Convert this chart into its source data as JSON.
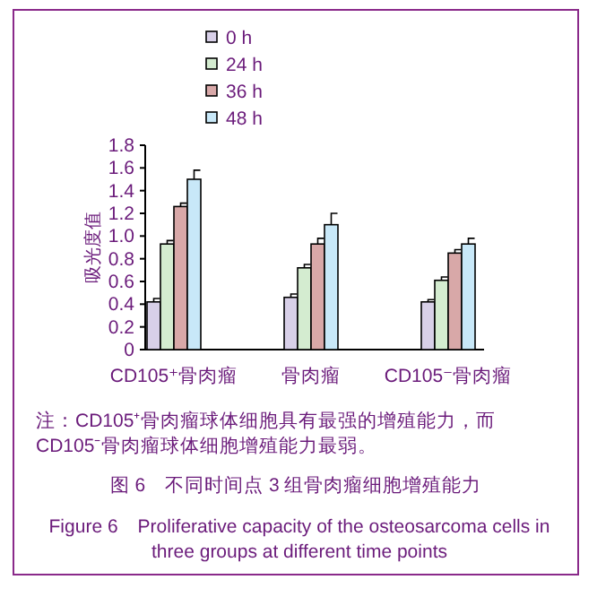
{
  "chart_data": {
    "type": "bar",
    "title": "图 6　不同时间点 3 组骨肉瘤细胞增殖能力",
    "subtitle": "Figure 6　Proliferative capacity of the osteosarcoma cells in three groups at different time points",
    "ylabel": "吸光度值",
    "annotations": [
      "注：CD105⁺骨肉瘤球体细胞具有最强的增殖能力，而 CD105⁻骨肉瘤球体细胞增殖能力最弱。"
    ],
    "categories": [
      "CD105⁺骨肉瘤",
      "骨肉瘤",
      "CD105⁻骨肉瘤"
    ],
    "series": [
      {
        "name": "0 h",
        "color": "#d8d0e8",
        "values": [
          0.42,
          0.46,
          0.42
        ],
        "errors": [
          0.03,
          0.03,
          0.02
        ]
      },
      {
        "name": "24 h",
        "color": "#d4ecd0",
        "values": [
          0.93,
          0.72,
          0.61
        ],
        "errors": [
          0.03,
          0.03,
          0.03
        ]
      },
      {
        "name": "36 h",
        "color": "#d8a8a8",
        "values": [
          1.26,
          0.93,
          0.85
        ],
        "errors": [
          0.03,
          0.05,
          0.03
        ]
      },
      {
        "name": "48 h",
        "color": "#c8e8f8",
        "values": [
          1.5,
          1.1,
          0.93
        ],
        "errors": [
          0.08,
          0.1,
          0.05
        ]
      }
    ],
    "ylim": [
      0,
      1.8
    ],
    "yticks": [
      0,
      {
        "value": 0.2,
        "label": "0.2"
      },
      {
        "value": 0.4,
        "label": "0.4"
      },
      {
        "value": 0.6,
        "label": "0.6"
      },
      {
        "value": 0.8,
        "label": "0.8"
      },
      {
        "value": 1,
        "label": "1.0"
      },
      {
        "value": 1.2,
        "label": "1.2"
      },
      {
        "value": 1.4,
        "label": "1.4"
      },
      {
        "value": 1.6,
        "label": "1.6"
      },
      {
        "value": 1.8,
        "label": "1.8"
      }
    ],
    "grid": false,
    "legend": "top"
  }
}
